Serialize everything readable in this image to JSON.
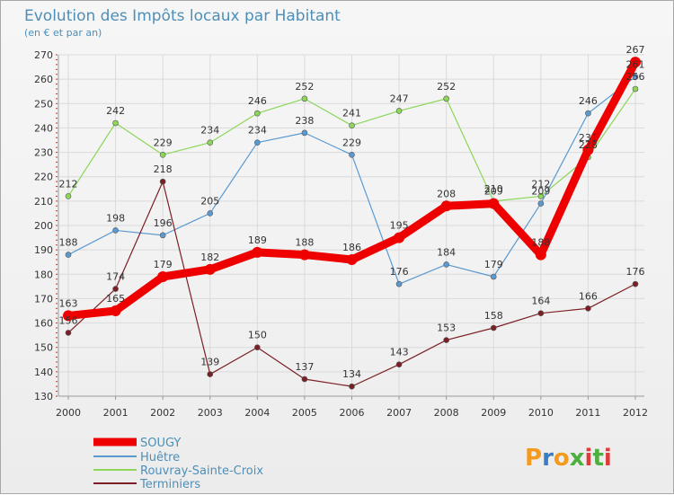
{
  "title": "Evolution des Impôts locaux par Habitant",
  "subtitle": "(en € et par an)",
  "brand": {
    "letters": [
      "P",
      "r",
      "o",
      "x",
      "i",
      "t",
      "i"
    ],
    "colors": [
      "#f39a1f",
      "#3a7dc2",
      "#f39a1f",
      "#4caf3f",
      "#e03b3b",
      "#4caf3f",
      "#e03b3b"
    ]
  },
  "chart_data": {
    "type": "line",
    "title": "Evolution des Impôts locaux par Habitant",
    "subtitle": "(en € et par an)",
    "x": [
      "2000",
      "2001",
      "2002",
      "2003",
      "2004",
      "2005",
      "2006",
      "2007",
      "2008",
      "2009",
      "2010",
      "2011",
      "2012"
    ],
    "ylim": [
      130,
      270
    ],
    "yticks": [
      130,
      140,
      150,
      160,
      170,
      180,
      190,
      200,
      210,
      220,
      230,
      240,
      250,
      260,
      270
    ],
    "grid": true,
    "legend_position": "bottom-left",
    "series": [
      {
        "name": "Rouvray-Sainte-Croix",
        "color": "#8cd65a",
        "values": [
          212,
          242,
          229,
          234,
          246,
          252,
          241,
          247,
          252,
          210,
          212,
          228,
          256
        ]
      },
      {
        "name": "Huêtre",
        "color": "#5b9ad0",
        "values": [
          188,
          198,
          196,
          205,
          234,
          238,
          229,
          176,
          184,
          179,
          209,
          246,
          261
        ]
      },
      {
        "name": "Terminiers",
        "color": "#7a1f24",
        "values": [
          156,
          174,
          218,
          139,
          150,
          137,
          134,
          143,
          153,
          158,
          164,
          166,
          176
        ]
      },
      {
        "name": "SOUGY",
        "color": "#ee0000",
        "values": [
          163,
          165,
          179,
          182,
          189,
          188,
          186,
          195,
          208,
          209,
          188,
          231,
          267
        ]
      }
    ],
    "legend_order": [
      "SOUGY",
      "Huêtre",
      "Rouvray-Sainte-Croix",
      "Terminiers"
    ]
  }
}
